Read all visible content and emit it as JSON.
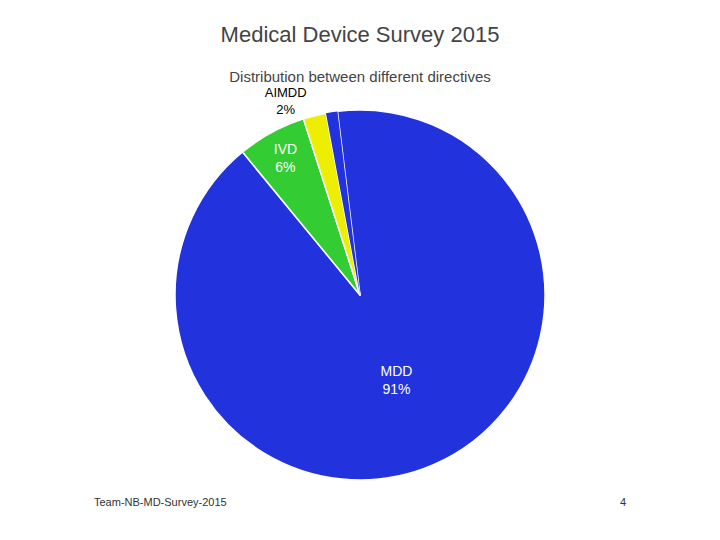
{
  "chart_data": {
    "type": "pie",
    "title": "Medical Device Survey 2015",
    "subtitle": "Distribution between different directives",
    "categories": [
      "MDD",
      "IVD",
      "AIMDD",
      null
    ],
    "values": [
      91,
      6,
      2,
      1
    ],
    "value_labels": [
      "91%",
      "6%",
      "2%",
      null
    ],
    "data_labels": true,
    "colors": [
      "#2233dd",
      "#33cc33",
      "#eeee00",
      "#2233dd"
    ],
    "annotations": [
      "Team-NB-MD-Survey-2015",
      "4"
    ]
  }
}
